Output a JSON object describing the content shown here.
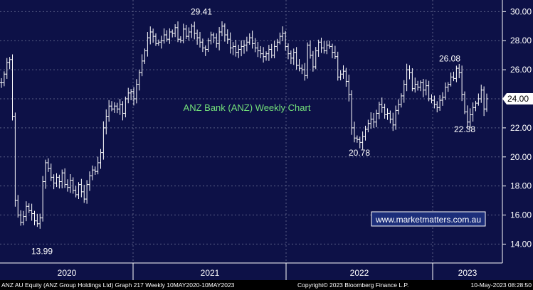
{
  "chart_data": {
    "type": "ohlc",
    "title": "ANZ Bank (ANZ) Weekly Chart",
    "xlabel": "",
    "ylabel": "",
    "ylim": [
      12.7,
      30.8
    ],
    "y_ticks": [
      "14.00",
      "16.00",
      "18.00",
      "20.00",
      "22.00",
      "24.00",
      "26.00",
      "28.00",
      "30.00"
    ],
    "y_tick_values": [
      14,
      16,
      18,
      20,
      22,
      24,
      26,
      28,
      30
    ],
    "x_labels": [
      "2020",
      "2021",
      "2022",
      "2023"
    ],
    "last_price": "24.00",
    "last_value": 24.0,
    "grid": true,
    "series": [
      {
        "name": "",
        "values": [
          25.1,
          25.7,
          26.5,
          26.7,
          22.8,
          17.0,
          16.0,
          15.5,
          15.9,
          16.6,
          16.3,
          16.1,
          15.6,
          15.4,
          15.8,
          18.3,
          19.6,
          19.2,
          18.6,
          18.2,
          18.6,
          18.3,
          18.9,
          18.1,
          17.9,
          18.4,
          17.7,
          17.4,
          18.1,
          17.6,
          17.1,
          18.1,
          18.7,
          19.1,
          19.0,
          19.6,
          20.3,
          22.0,
          22.8,
          23.5,
          23.3,
          23.5,
          23.3,
          23.6,
          23.0,
          24.0,
          24.4,
          24.5,
          24.0,
          25.0,
          25.8,
          26.6,
          27.3,
          28.2,
          28.6,
          28.3,
          27.8,
          27.9,
          28.0,
          28.4,
          28.1,
          28.6,
          28.5,
          28.9,
          28.1,
          28.0,
          28.8,
          28.3,
          28.6,
          29.0,
          28.5,
          28.2,
          27.9,
          27.5,
          27.4,
          28.0,
          28.4,
          28.2,
          27.8,
          28.6,
          29.0,
          28.4,
          28.1,
          27.5,
          27.6,
          27.2,
          27.4,
          27.6,
          27.7,
          27.9,
          28.2,
          27.8,
          27.5,
          27.3,
          27.1,
          26.9,
          27.1,
          27.4,
          27.0,
          27.6,
          27.9,
          28.3,
          28.5,
          27.6,
          27.1,
          26.8,
          27.2,
          26.3,
          26.1,
          26.0,
          25.6,
          27.7,
          27.0,
          26.2,
          27.3,
          27.9,
          27.5,
          27.3,
          27.7,
          27.6,
          27.2,
          26.9,
          25.5,
          25.7,
          25.9,
          25.2,
          24.3,
          22.0,
          21.3,
          21.2,
          21.0,
          21.4,
          21.9,
          22.3,
          22.6,
          22.4,
          23.0,
          23.6,
          23.4,
          22.9,
          23.0,
          22.6,
          22.2,
          23.2,
          23.6,
          24.2,
          25.0,
          26.0,
          25.8,
          24.7,
          25.0,
          24.8,
          25.1,
          24.6,
          24.9,
          24.0,
          23.9,
          23.6,
          23.4,
          23.9,
          24.1,
          24.8,
          25.0,
          25.5,
          25.4,
          26.1,
          25.8,
          24.3,
          23.1,
          22.4,
          22.9,
          23.4,
          23.7,
          24.0,
          24.6,
          23.3,
          24.0
        ]
      }
    ],
    "annotations": [
      {
        "text": "29.41",
        "value": 29.41
      },
      {
        "text": "26.08",
        "value": 26.08
      },
      {
        "text": "13.99",
        "value": 13.99
      },
      {
        "text": "20.78",
        "value": 20.78
      },
      {
        "text": "22.38",
        "value": 22.38
      }
    ],
    "watermark": "www.marketmatters.com.au"
  },
  "footer": {
    "left": "ANZ AU Equity (ANZ Group Holdings Ltd) Graph 217  Weekly 10MAY2020-10MAY2023",
    "center": "Copyright© 2023 Bloomberg Finance L.P.",
    "right": "10-May-2023 08:28:50"
  },
  "colors": {
    "background": "#0d1147",
    "bars": "#ffffff",
    "grid": "#5a5f86",
    "title": "#73e07a",
    "badge": "#ffffff",
    "badge_text": "#000000",
    "link_box": "#1c2e7a",
    "link_border": "#ffffff"
  }
}
